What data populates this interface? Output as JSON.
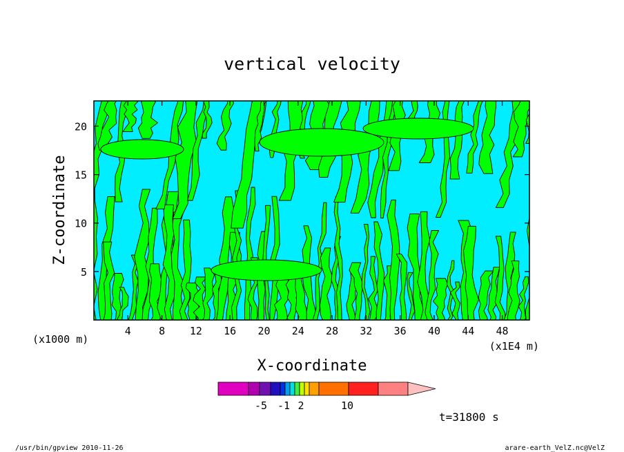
{
  "chart_data": {
    "type": "heatmap",
    "title": "vertical velocity",
    "xlabel": "X-coordinate",
    "ylabel": "Z-coordinate",
    "x_unit_left": "(x1000 m)",
    "x_unit_right": "(x1E4 m)",
    "x_ticks": [
      "4",
      "8",
      "12",
      "16",
      "20",
      "24",
      "28",
      "32",
      "36",
      "40",
      "44",
      "48"
    ],
    "y_ticks": [
      "5",
      "10",
      "15",
      "20"
    ],
    "xlim": [
      0,
      51.2
    ],
    "ylim": [
      0,
      22.6
    ],
    "fill_colors": {
      "positive": "#00ff00",
      "negative": "#00eeff"
    },
    "colorbar": {
      "colors": [
        "#e000c0",
        "#b000b0",
        "#7010b0",
        "#2010c0",
        "#0030e0",
        "#00a0f0",
        "#00e0e0",
        "#40f040",
        "#c0ff00",
        "#ffe000",
        "#ffa000",
        "#ff7000",
        "#ff2020",
        "#ff8080",
        "#ffc0c0"
      ],
      "labels": [
        "-5",
        "-1",
        "2",
        "10"
      ]
    },
    "time_label": "t=31800 s"
  },
  "footer": {
    "left": "/usr/bin/gpview   2010-11-26",
    "right": "arare-earth_VelZ.nc@VelZ"
  }
}
